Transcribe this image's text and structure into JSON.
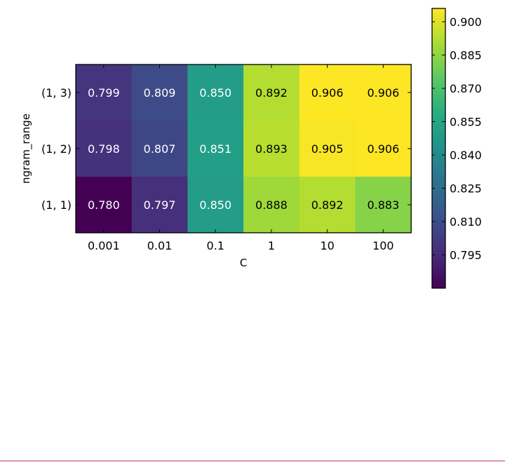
{
  "chart_data": {
    "type": "heatmap",
    "xlabel": "C",
    "ylabel": "ngram_range",
    "x_categories": [
      "0.001",
      "0.01",
      "0.1",
      "1",
      "10",
      "100"
    ],
    "y_categories": [
      "(1, 3)",
      "(1, 2)",
      "(1, 1)"
    ],
    "values": [
      [
        0.799,
        0.809,
        0.85,
        0.892,
        0.906,
        0.906
      ],
      [
        0.798,
        0.807,
        0.851,
        0.893,
        0.905,
        0.906
      ],
      [
        0.78,
        0.797,
        0.85,
        0.888,
        0.892,
        0.883
      ]
    ],
    "cell_labels": [
      [
        "0.799",
        "0.809",
        "0.850",
        "0.892",
        "0.906",
        "0.906"
      ],
      [
        "0.798",
        "0.807",
        "0.851",
        "0.893",
        "0.905",
        "0.906"
      ],
      [
        "0.780",
        "0.797",
        "0.850",
        "0.888",
        "0.892",
        "0.883"
      ]
    ],
    "colormap": "viridis",
    "colorbar": {
      "range": [
        0.78,
        0.906
      ],
      "ticks": [
        0.795,
        0.81,
        0.825,
        0.84,
        0.855,
        0.87,
        0.885,
        0.9
      ],
      "tick_labels": [
        "0.795",
        "0.810",
        "0.825",
        "0.840",
        "0.855",
        "0.870",
        "0.885",
        "0.900"
      ],
      "placement": "right"
    },
    "grid": false
  }
}
